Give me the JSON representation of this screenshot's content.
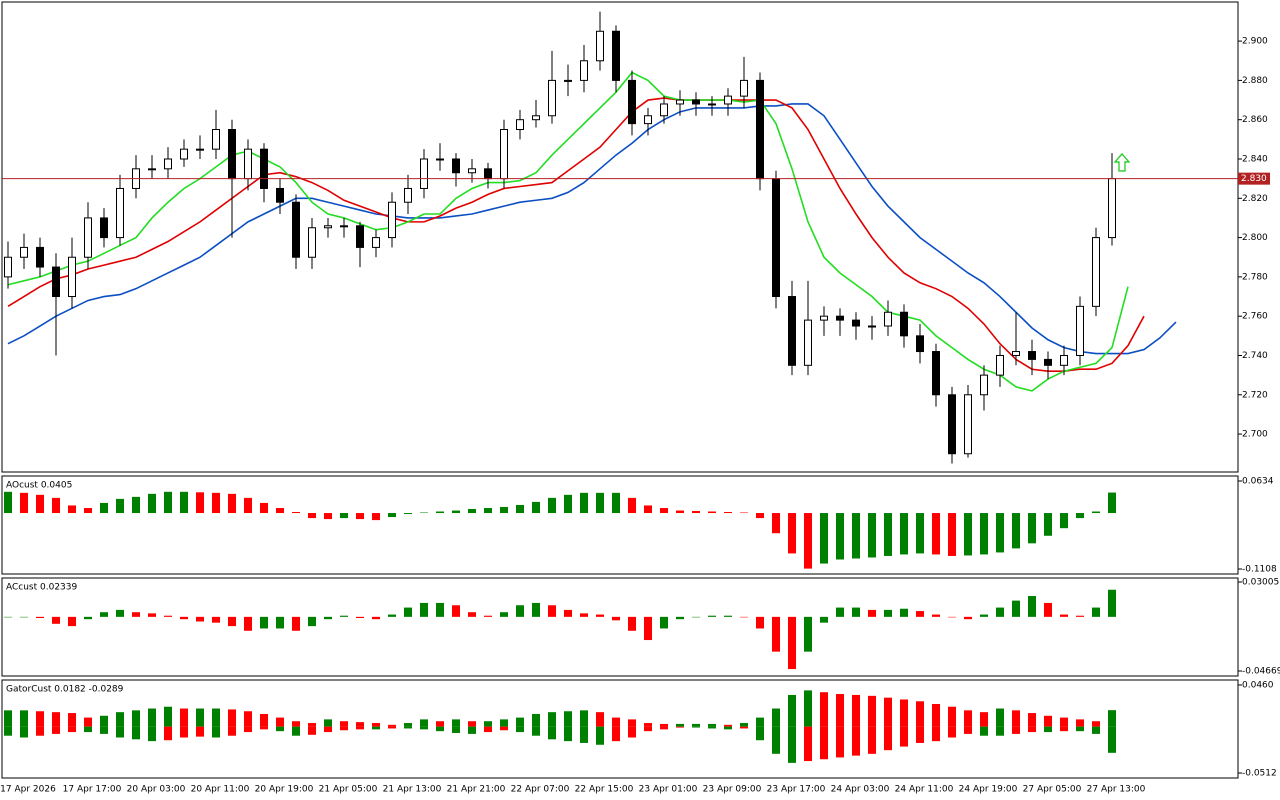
{
  "chart_data": [
    {
      "type": "candlestick",
      "ylim": [
        2.6807,
        2.9199
      ],
      "yticks": [
        {
          "value": 2.7,
          "label": "2.700"
        },
        {
          "value": 2.72,
          "label": "2.720"
        },
        {
          "value": 2.74,
          "label": "2.740"
        },
        {
          "value": 2.76,
          "label": "2.760"
        },
        {
          "value": 2.78,
          "label": "2.780"
        },
        {
          "value": 2.8,
          "label": "2.800"
        },
        {
          "value": 2.82,
          "label": "2.820"
        },
        {
          "value": 2.84,
          "label": "2.840"
        },
        {
          "value": 2.86,
          "label": "2.860"
        },
        {
          "value": 2.88,
          "label": "2.880"
        },
        {
          "value": 2.9,
          "label": "2.900"
        }
      ],
      "open": [
        2.78,
        2.79,
        2.795,
        2.785,
        2.77,
        2.79,
        2.81,
        2.8,
        2.825,
        2.835,
        2.835,
        2.84,
        2.845,
        2.845,
        2.855,
        2.83,
        2.845,
        2.825,
        2.818,
        2.79,
        2.805,
        2.806,
        2.806,
        2.795,
        2.8,
        2.818,
        2.825,
        2.84,
        2.84,
        2.833,
        2.835,
        2.83,
        2.855,
        2.86,
        2.862,
        2.88,
        2.88,
        2.89,
        2.905,
        2.88,
        2.858,
        2.862,
        2.868,
        2.87,
        2.868,
        2.868,
        2.872,
        2.88,
        2.83,
        2.77,
        2.735,
        2.758,
        2.76,
        2.758,
        2.755,
        2.755,
        2.762,
        2.75,
        2.742,
        2.72,
        2.69,
        2.72,
        2.73,
        2.74,
        2.742,
        2.738,
        2.735,
        2.74,
        2.765,
        2.8
      ],
      "high": [
        2.798,
        2.802,
        2.8,
        2.792,
        2.8,
        2.818,
        2.815,
        2.832,
        2.842,
        2.842,
        2.846,
        2.85,
        2.852,
        2.865,
        2.86,
        2.85,
        2.848,
        2.83,
        2.822,
        2.81,
        2.81,
        2.81,
        2.808,
        2.804,
        2.823,
        2.832,
        2.845,
        2.848,
        2.843,
        2.84,
        2.838,
        2.86,
        2.865,
        2.87,
        2.895,
        2.888,
        2.898,
        2.915,
        2.908,
        2.885,
        2.866,
        2.872,
        2.875,
        2.874,
        2.872,
        2.876,
        2.892,
        2.884,
        2.834,
        2.778,
        2.778,
        2.765,
        2.764,
        2.762,
        2.76,
        2.768,
        2.766,
        2.756,
        2.746,
        2.724,
        2.725,
        2.735,
        2.745,
        2.762,
        2.748,
        2.742,
        2.745,
        2.77,
        2.805,
        2.843
      ],
      "low": [
        2.774,
        2.784,
        2.78,
        2.74,
        2.764,
        2.784,
        2.795,
        2.796,
        2.82,
        2.83,
        2.83,
        2.836,
        2.84,
        2.84,
        2.8,
        2.824,
        2.818,
        2.812,
        2.784,
        2.784,
        2.8,
        2.8,
        2.785,
        2.79,
        2.795,
        2.812,
        2.82,
        2.834,
        2.826,
        2.828,
        2.825,
        2.825,
        2.85,
        2.856,
        2.858,
        2.872,
        2.874,
        2.885,
        2.874,
        2.852,
        2.852,
        2.858,
        2.862,
        2.862,
        2.862,
        2.862,
        2.866,
        2.824,
        2.764,
        2.73,
        2.73,
        2.75,
        2.75,
        2.748,
        2.748,
        2.75,
        2.744,
        2.736,
        2.714,
        2.685,
        2.688,
        2.712,
        2.724,
        2.735,
        2.73,
        2.728,
        2.73,
        2.735,
        2.76,
        2.796
      ],
      "close": [
        2.79,
        2.795,
        2.785,
        2.77,
        2.79,
        2.81,
        2.8,
        2.825,
        2.835,
        2.835,
        2.84,
        2.845,
        2.845,
        2.855,
        2.83,
        2.845,
        2.825,
        2.818,
        2.79,
        2.805,
        2.806,
        2.806,
        2.795,
        2.8,
        2.818,
        2.825,
        2.84,
        2.84,
        2.833,
        2.835,
        2.83,
        2.855,
        2.86,
        2.862,
        2.88,
        2.88,
        2.89,
        2.905,
        2.88,
        2.858,
        2.862,
        2.868,
        2.87,
        2.868,
        2.868,
        2.872,
        2.88,
        2.83,
        2.77,
        2.735,
        2.758,
        2.76,
        2.758,
        2.755,
        2.755,
        2.762,
        2.75,
        2.742,
        2.72,
        2.69,
        2.72,
        2.73,
        2.74,
        2.742,
        2.738,
        2.735,
        2.74,
        2.765,
        2.8,
        2.83
      ],
      "overlays": [
        {
          "color": "#0b4fc4",
          "values": [
            2.746,
            2.75,
            2.755,
            2.76,
            2.764,
            2.768,
            2.77,
            2.771,
            2.774,
            2.778,
            2.782,
            2.786,
            2.79,
            2.796,
            2.802,
            2.808,
            2.812,
            2.816,
            2.82,
            2.82,
            2.818,
            2.816,
            2.814,
            2.812,
            2.811,
            2.81,
            2.81,
            2.81,
            2.811,
            2.812,
            2.814,
            2.816,
            2.818,
            2.819,
            2.82,
            2.823,
            2.828,
            2.835,
            2.842,
            2.848,
            2.855,
            2.86,
            2.864,
            2.866,
            2.866,
            2.866,
            2.866,
            2.867,
            2.867,
            2.868,
            2.868,
            2.862,
            2.85,
            2.838,
            2.826,
            2.816,
            2.808,
            2.8,
            2.794,
            2.788,
            2.782,
            2.777,
            2.77,
            2.762,
            2.754,
            2.748,
            2.744,
            2.742,
            2.741,
            2.741,
            2.741,
            2.743,
            2.749,
            2.757
          ]
        },
        {
          "color": "#e00000",
          "values": [
            2.765,
            2.77,
            2.775,
            2.779,
            2.781,
            2.784,
            2.786,
            2.788,
            2.79,
            2.794,
            2.798,
            2.803,
            2.808,
            2.814,
            2.82,
            2.826,
            2.832,
            2.833,
            2.831,
            2.828,
            2.824,
            2.819,
            2.816,
            2.813,
            2.81,
            2.808,
            2.808,
            2.811,
            2.815,
            2.818,
            2.822,
            2.825,
            2.826,
            2.827,
            2.828,
            2.834,
            2.84,
            2.846,
            2.855,
            2.864,
            2.87,
            2.871,
            2.87,
            2.87,
            2.87,
            2.87,
            2.87,
            2.87,
            2.87,
            2.866,
            2.855,
            2.84,
            2.825,
            2.812,
            2.8,
            2.79,
            2.782,
            2.777,
            2.774,
            2.77,
            2.764,
            2.756,
            2.746,
            2.738,
            2.733,
            2.732,
            2.732,
            2.733,
            2.733,
            2.736,
            2.745,
            2.76
          ]
        },
        {
          "color": "#22dd22",
          "values": [
            2.776,
            2.778,
            2.78,
            2.783,
            2.786,
            2.788,
            2.792,
            2.796,
            2.8,
            2.81,
            2.818,
            2.825,
            2.83,
            2.836,
            2.842,
            2.844,
            2.84,
            2.836,
            2.828,
            2.818,
            2.812,
            2.81,
            2.807,
            2.804,
            2.805,
            2.808,
            2.812,
            2.812,
            2.82,
            2.825,
            2.828,
            2.828,
            2.829,
            2.833,
            2.842,
            2.85,
            2.858,
            2.866,
            2.874,
            2.884,
            2.88,
            2.872,
            2.87,
            2.87,
            2.87,
            2.87,
            2.869,
            2.87,
            2.858,
            2.835,
            2.808,
            2.79,
            2.782,
            2.776,
            2.77,
            2.762,
            2.76,
            2.758,
            2.75,
            2.744,
            2.738,
            2.733,
            2.73,
            2.724,
            2.722,
            2.728,
            2.732,
            2.734,
            2.736,
            2.744,
            2.775
          ]
        }
      ],
      "price_line": {
        "value": 2.83,
        "label": "2.830",
        "color": "#b22222"
      },
      "signal_arrow": {
        "value": 2.838,
        "color": "#22cc22"
      }
    },
    {
      "type": "histogram",
      "title": "AOcust 0.0405",
      "color_by": "change",
      "up_color": "#008000",
      "down_color": "#ff0000",
      "ylim": [
        -0.1207,
        0.0733
      ],
      "yticks": [
        0.0634,
        -0.1108
      ],
      "bars": [
        [
          0.042,
          0.04,
          0.036,
          0.03,
          0.015,
          0.01,
          0.02,
          0.028,
          0.032,
          0.038,
          0.042,
          0.042,
          0.041,
          0.04,
          0.038,
          0.03,
          0.02,
          0.01,
          0.002,
          -0.01,
          -0.012,
          -0.01,
          -0.012,
          -0.014,
          -0.008,
          -0.002,
          0.001,
          0.003,
          0.005,
          0.008,
          0.01,
          0.012,
          0.016,
          0.022,
          0.03,
          0.036,
          0.04,
          0.04,
          0.04,
          0.03,
          0.015,
          0.01,
          0.005,
          0.004,
          0.003,
          0.002,
          0.001,
          -0.01,
          -0.04,
          -0.08,
          -0.11,
          -0.1,
          -0.092,
          -0.09,
          -0.088,
          -0.085,
          -0.082,
          -0.08,
          -0.082,
          -0.085,
          -0.084,
          -0.082,
          -0.078,
          -0.07,
          -0.06,
          -0.045,
          -0.03,
          -0.01,
          0.003,
          0.0405
        ]
      ]
    },
    {
      "type": "histogram",
      "title": "ACcust 0.02339",
      "color_by": "change",
      "up_color": "#008000",
      "down_color": "#ff0000",
      "ylim": [
        -0.051,
        0.0335
      ],
      "yticks": [
        0.03005,
        -0.04669
      ],
      "bars": [
        [
          0.0,
          0.0,
          -0.001,
          -0.006,
          -0.008,
          -0.002,
          0.004,
          0.006,
          0.004,
          0.003,
          0.001,
          -0.002,
          -0.004,
          -0.005,
          -0.008,
          -0.012,
          -0.01,
          -0.01,
          -0.012,
          -0.008,
          -0.002,
          0.001,
          -0.001,
          -0.002,
          0.002,
          0.008,
          0.012,
          0.012,
          0.01,
          0.004,
          0.001,
          0.004,
          0.01,
          0.012,
          0.01,
          0.006,
          0.003,
          0.002,
          -0.003,
          -0.012,
          -0.02,
          -0.01,
          -0.002,
          0.0,
          0.001,
          0.001,
          0.0,
          -0.01,
          -0.03,
          -0.045,
          -0.03,
          -0.005,
          0.008,
          0.008,
          0.006,
          0.006,
          0.007,
          0.005,
          0.002,
          0.0,
          -0.002,
          0.002,
          0.008,
          0.014,
          0.018,
          0.012,
          0.002,
          0.001,
          0.008,
          0.02339
        ]
      ]
    },
    {
      "type": "histogram",
      "title": "GatorCust 0.0182 -0.0289",
      "color_by": "magnitude",
      "up_color": "#008000",
      "down_color": "#ff0000",
      "ylim": [
        -0.0567,
        0.0515
      ],
      "yticks": [
        {
          "value": 0.046,
          "label": "0.0460"
        },
        -0.0512
      ],
      "bars": [
        [
          0.018,
          0.018,
          0.017,
          0.016,
          0.015,
          0.01,
          0.012,
          0.016,
          0.018,
          0.02,
          0.022,
          0.02,
          0.02,
          0.02,
          0.019,
          0.017,
          0.014,
          0.01,
          0.006,
          0.004,
          0.008,
          0.006,
          0.005,
          0.004,
          0.002,
          0.004,
          0.008,
          0.006,
          0.008,
          0.006,
          0.006,
          0.008,
          0.01,
          0.014,
          0.016,
          0.017,
          0.018,
          0.016,
          0.01,
          0.008,
          0.004,
          0.003,
          0.003,
          0.003,
          0.003,
          0.002,
          0.004,
          0.01,
          0.02,
          0.035,
          0.04,
          0.038,
          0.036,
          0.035,
          0.034,
          0.032,
          0.03,
          0.028,
          0.025,
          0.022,
          0.018,
          0.016,
          0.02,
          0.018,
          0.015,
          0.012,
          0.01,
          0.008,
          0.006,
          0.0182
        ],
        [
          -0.01,
          -0.012,
          -0.01,
          -0.008,
          -0.006,
          -0.006,
          -0.008,
          -0.012,
          -0.014,
          -0.016,
          -0.015,
          -0.012,
          -0.011,
          -0.012,
          -0.01,
          -0.006,
          -0.003,
          -0.005,
          -0.01,
          -0.009,
          -0.006,
          -0.004,
          -0.003,
          -0.003,
          -0.002,
          -0.002,
          -0.003,
          -0.005,
          -0.007,
          -0.008,
          -0.006,
          -0.004,
          -0.006,
          -0.01,
          -0.014,
          -0.016,
          -0.018,
          -0.02,
          -0.016,
          -0.012,
          -0.005,
          -0.003,
          -0.001,
          -0.001,
          -0.002,
          -0.003,
          -0.002,
          -0.015,
          -0.03,
          -0.04,
          -0.038,
          -0.036,
          -0.034,
          -0.032,
          -0.03,
          -0.026,
          -0.022,
          -0.018,
          -0.016,
          -0.012,
          -0.008,
          -0.01,
          -0.01,
          -0.008,
          -0.006,
          -0.006,
          -0.005,
          -0.005,
          -0.008,
          -0.0289
        ]
      ],
      "xticks": [
        "17 Apr 2026",
        "17 Apr 17:00",
        "20 Apr 03:00",
        "20 Apr 11:00",
        "20 Apr 19:00",
        "21 Apr 05:00",
        "21 Apr 13:00",
        "21 Apr 21:00",
        "22 Apr 07:00",
        "22 Apr 15:00",
        "23 Apr 01:00",
        "23 Apr 09:00",
        "23 Apr 17:00",
        "24 Apr 03:00",
        "24 Apr 11:00",
        "24 Apr 19:00",
        "27 Apr 05:00",
        "27 Apr 13:00"
      ]
    }
  ]
}
